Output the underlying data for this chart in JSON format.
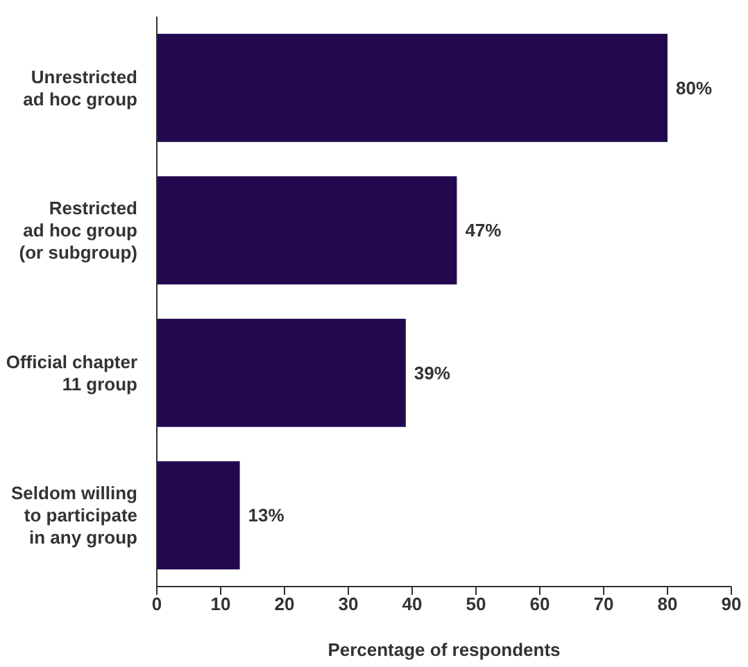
{
  "chart_data": {
    "type": "bar",
    "orientation": "horizontal",
    "xlabel": "Percentage of respondents",
    "categories": [
      "Unrestricted\nad hoc group",
      "Restricted\nad hoc group\n(or subgroup)",
      "Official chapter\n11 group",
      "Seldom willing\nto participate\nin any group"
    ],
    "values": [
      80,
      47,
      39,
      13
    ],
    "value_labels": [
      "80%",
      "47%",
      "39%",
      "13%"
    ],
    "color": "#22094f",
    "xlim": [
      0,
      90
    ],
    "xticks": [
      0,
      10,
      20,
      30,
      40,
      50,
      60,
      70,
      80,
      90
    ],
    "grid": false,
    "legend": false
  }
}
